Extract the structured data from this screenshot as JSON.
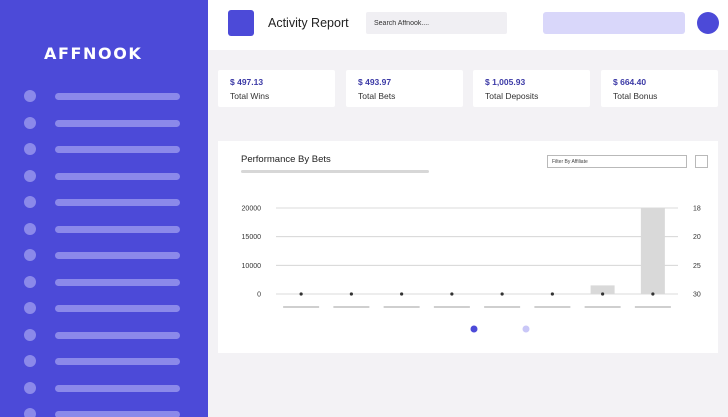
{
  "sidebar": {
    "logo": "AFFNOOK",
    "items": [
      {},
      {},
      {},
      {},
      {},
      {},
      {},
      {},
      {},
      {},
      {},
      {},
      {},
      {},
      {}
    ]
  },
  "header": {
    "title": "Activity Report",
    "search_placeholder": "Search Affnook...."
  },
  "stats": [
    {
      "value": "$ 497.13",
      "label": "Total Wins"
    },
    {
      "value": "$ 493.97",
      "label": "Total Bets"
    },
    {
      "value": "$ 1,005.93",
      "label": "Total Deposits"
    },
    {
      "value": "$ 664.40",
      "label": "Total Bonus"
    }
  ],
  "chart_panel": {
    "title": "Performance By Bets",
    "filter_placeholder": "Filter By Affiliate"
  },
  "chart_data": {
    "type": "bar",
    "categories": [
      "",
      "",
      "",
      "",
      "",
      "",
      "",
      ""
    ],
    "series": [
      {
        "values": [
          0,
          0,
          0,
          0,
          0,
          0,
          2000,
          20000
        ],
        "color": "#d9d9d9"
      },
      {
        "values": [
          0,
          0,
          0,
          0,
          0,
          0,
          0,
          0
        ],
        "color": "#333333",
        "render": "points"
      }
    ],
    "ylim": [
      0,
      20000
    ],
    "left_ticks": [
      "20000",
      "15000",
      "10000",
      "0"
    ],
    "right_ticks": [
      "18",
      "20",
      "25",
      "30"
    ],
    "grid": true,
    "legend_colors": [
      "#4c4ad8",
      "#c9c7f7"
    ]
  }
}
